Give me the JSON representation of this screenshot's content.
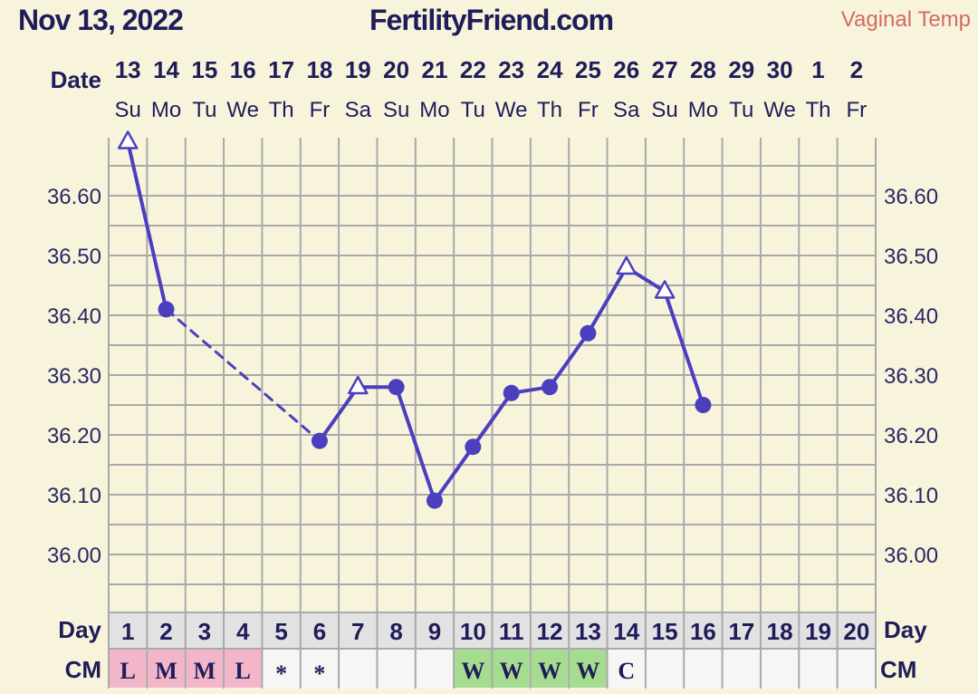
{
  "header": {
    "date": "Nov 13, 2022",
    "site": "FertilityFriend.com",
    "temp_type": "Vaginal Temp"
  },
  "labels": {
    "date": "Date",
    "day": "Day",
    "cm": "CM"
  },
  "colors": {
    "background": "#f8f4dc",
    "grid": "#a9a9a9",
    "line": "#4b3fbf",
    "cm_menstrual": "#f2b6c8",
    "cm_watery": "#a6dc8f",
    "header_red": "#d46a62",
    "text": "#1f1c5a"
  },
  "chart_data": {
    "type": "line",
    "title": "",
    "xlabel": "Date",
    "ylabel": "",
    "ylim": [
      35.9,
      36.7
    ],
    "yticks": [
      "36.00",
      "36.10",
      "36.20",
      "36.30",
      "36.40",
      "36.50",
      "36.60"
    ],
    "dates": [
      "13",
      "14",
      "15",
      "16",
      "17",
      "18",
      "19",
      "20",
      "21",
      "22",
      "23",
      "24",
      "25",
      "26",
      "27",
      "28",
      "29",
      "30",
      "1",
      "2"
    ],
    "weekdays": [
      "Su",
      "Mo",
      "Tu",
      "We",
      "Th",
      "Fr",
      "Sa",
      "Su",
      "Mo",
      "Tu",
      "We",
      "Th",
      "Fr",
      "Sa",
      "Su",
      "Mo",
      "Tu",
      "We",
      "Th",
      "Fr"
    ],
    "cycle_days": [
      "1",
      "2",
      "3",
      "4",
      "5",
      "6",
      "7",
      "8",
      "9",
      "10",
      "11",
      "12",
      "13",
      "14",
      "15",
      "16",
      "17",
      "18",
      "19",
      "20"
    ],
    "cervical_mucus": [
      "L",
      "M",
      "M",
      "L",
      "*",
      "*",
      "",
      "",
      "",
      "W",
      "W",
      "W",
      "W",
      "C",
      "",
      "",
      "",
      "",
      "",
      ""
    ],
    "temps": [
      36.69,
      36.41,
      null,
      null,
      null,
      36.19,
      36.28,
      36.28,
      36.09,
      36.18,
      36.27,
      36.28,
      36.37,
      36.48,
      36.44,
      36.25,
      null,
      null,
      null,
      null
    ],
    "markers": [
      "triangle",
      "circle",
      "",
      "",
      "",
      "circle",
      "triangle",
      "circle",
      "circle",
      "circle",
      "circle",
      "circle",
      "circle",
      "triangle",
      "triangle",
      "circle",
      "",
      "",
      "",
      ""
    ],
    "grid": true
  }
}
